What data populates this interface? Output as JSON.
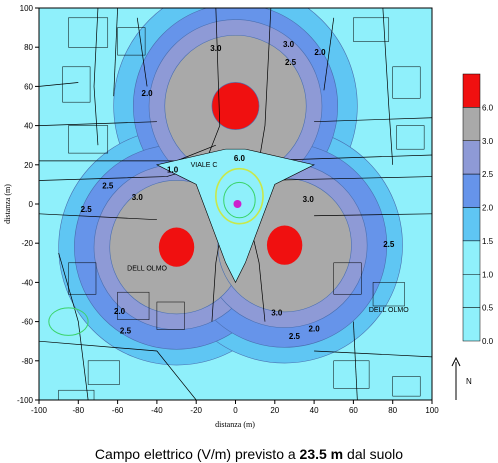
{
  "chart_data": {
    "type": "heatmap",
    "xlabel": "distanza (m)",
    "ylabel": "distanza (m)",
    "xlim": [
      -100,
      100
    ],
    "ylim": [
      -100,
      100
    ],
    "xticks": [
      -100,
      -80,
      -60,
      -40,
      -20,
      0,
      20,
      40,
      60,
      80,
      100
    ],
    "yticks": [
      -100,
      -80,
      -60,
      -40,
      -20,
      0,
      20,
      40,
      60,
      80,
      100
    ],
    "legend": {
      "placement": "right",
      "ticks": [
        "0.0",
        "0.5",
        "1.0",
        "1.5",
        "2.0",
        "2.5",
        "3.0",
        "6.0"
      ],
      "levels": [
        {
          "min": 0.0,
          "max": 0.5,
          "color": "#8ff0fb"
        },
        {
          "min": 0.5,
          "max": 1.0,
          "color": "#8ff0fb"
        },
        {
          "min": 1.0,
          "max": 1.5,
          "color": "#8ff0fb"
        },
        {
          "min": 1.5,
          "max": 2.0,
          "color": "#5fc6f3"
        },
        {
          "min": 2.0,
          "max": 2.5,
          "color": "#6694ea"
        },
        {
          "min": 2.5,
          "max": 3.0,
          "color": "#8e9ad6"
        },
        {
          "min": 3.0,
          "max": 6.0,
          "color": "#a9a9a9"
        },
        {
          "min": 6.0,
          "max": 7.0,
          "color": "#f01010"
        }
      ]
    },
    "sources": [
      {
        "x": 0,
        "y": 50
      },
      {
        "x": -30,
        "y": -22
      },
      {
        "x": 25,
        "y": -21
      }
    ],
    "contour_labels": [
      {
        "text": "3.0",
        "x": -10,
        "y": 78
      },
      {
        "text": "3.0",
        "x": 27,
        "y": 80
      },
      {
        "text": "2.5",
        "x": 28,
        "y": 71
      },
      {
        "text": "2.0",
        "x": 43,
        "y": 76
      },
      {
        "text": "2.0",
        "x": -45,
        "y": 55
      },
      {
        "text": "2.5",
        "x": -65,
        "y": 8
      },
      {
        "text": "2.5",
        "x": -76,
        "y": -4
      },
      {
        "text": "3.0",
        "x": -50,
        "y": 2
      },
      {
        "text": "3.0",
        "x": 37,
        "y": 1
      },
      {
        "text": "2.5",
        "x": 78,
        "y": -22
      },
      {
        "text": "3.0",
        "x": 21,
        "y": -57
      },
      {
        "text": "2.0",
        "x": -59,
        "y": -56
      },
      {
        "text": "2.5",
        "x": -56,
        "y": -66
      },
      {
        "text": "2.0",
        "x": 40,
        "y": -65
      },
      {
        "text": "2.5",
        "x": 30,
        "y": -69
      },
      {
        "text": "1.0",
        "x": -32,
        "y": 16
      },
      {
        "text": "6.0",
        "x": 2,
        "y": 22
      }
    ],
    "street_labels": [
      {
        "text": "VIALE C",
        "x": -16,
        "y": 19
      },
      {
        "text": "DELL OLMO",
        "x": -45,
        "y": -34
      },
      {
        "text": "DELL OLMO",
        "x": 78,
        "y": -55
      }
    ],
    "north_label": "N"
  },
  "caption": {
    "before": "Campo elettrico (V/m) previsto a",
    "bold": "23.5 m",
    "after": "dal suolo"
  }
}
